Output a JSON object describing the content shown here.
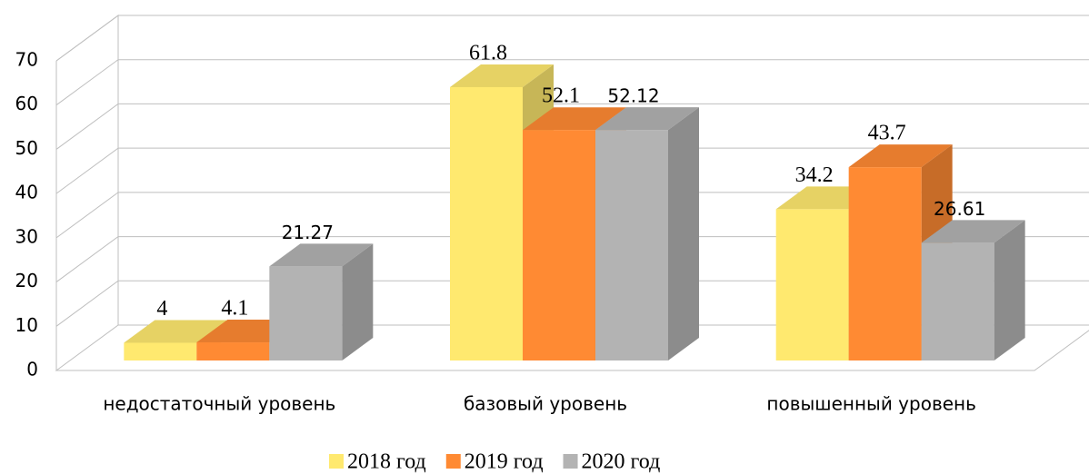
{
  "chart_data": {
    "type": "bar3d",
    "categories": [
      "недостаточный уровень",
      "базовый уровень",
      "повышенный уровень"
    ],
    "series": [
      {
        "name": "2018 год",
        "color": "#ffe96f",
        "values": [
          4,
          61.8,
          34.2
        ]
      },
      {
        "name": "2019 год",
        "color": "#ff8a33",
        "values": [
          4.1,
          52.1,
          43.7
        ]
      },
      {
        "name": "2020 год",
        "color": "#b3b3b3",
        "values": [
          21.27,
          52.12,
          26.61
        ]
      }
    ],
    "ylim": [
      0,
      70
    ],
    "yticks": [
      0,
      10,
      20,
      30,
      40,
      50,
      60,
      70
    ],
    "grid": true,
    "legend": "bottom"
  }
}
